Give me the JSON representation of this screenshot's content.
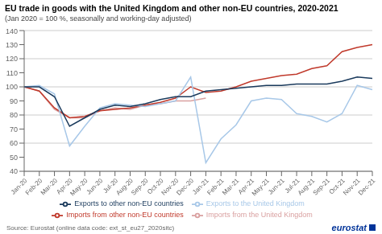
{
  "chart_data": {
    "type": "line",
    "title": "EU trade in goods with the United Kingdom and other non-EU countries, 2020-2021",
    "subtitle": "(Jan 2020 = 100 %, seasonally and working-day adjusted)",
    "annotations": [
      "Source: Eurostat (online data code: ext_st_eu27_2020sitc)",
      "eurostat"
    ],
    "categories": [
      "Jan-20",
      "Feb-20",
      "Mar-20",
      "Apr-20",
      "May-20",
      "Jun-20",
      "Jul-20",
      "Aug-20",
      "Sep-20",
      "Oct-20",
      "Nov-20",
      "Dec-20",
      "Jan-21",
      "Feb-21",
      "Mar-21",
      "Apr-21",
      "May-21",
      "Jun-21",
      "Jul-21",
      "Aug-21",
      "Sep-21",
      "Oct-21",
      "Nov-21",
      "Dec-21"
    ],
    "series": [
      {
        "name": "Imports from the United Kingdom",
        "color": "#d9a0a0",
        "values": [
          100,
          97,
          84,
          78,
          78,
          83,
          85,
          84,
          87,
          88,
          90,
          90,
          92,
          null,
          null,
          null,
          null,
          null,
          null,
          null,
          null,
          null,
          null,
          null
        ]
      },
      {
        "name": "Imports from other non-EU countries",
        "color": "#c0392b",
        "values": [
          100,
          97,
          85,
          78,
          79,
          83,
          84,
          85,
          87,
          89,
          92,
          100,
          96,
          97,
          100,
          104,
          106,
          108,
          109,
          113,
          115,
          125,
          128,
          130
        ]
      },
      {
        "name": "Exports to the United Kingdom",
        "color": "#a8c8e8",
        "values": [
          100,
          101,
          95,
          58,
          72,
          85,
          88,
          87,
          86,
          88,
          90,
          107,
          46,
          63,
          73,
          90,
          92,
          91,
          81,
          79,
          75,
          81,
          101,
          98
        ]
      },
      {
        "name": "Exports to other non-EU countries",
        "color": "#1a3a5c",
        "values": [
          100,
          100,
          93,
          72,
          78,
          84,
          87,
          86,
          88,
          91,
          93,
          93,
          97,
          98,
          99,
          100,
          101,
          101,
          102,
          102,
          102,
          104,
          107,
          106
        ]
      }
    ],
    "ylim": [
      40,
      140
    ],
    "yticks": [
      40,
      50,
      60,
      70,
      80,
      90,
      100,
      110,
      120,
      130,
      140
    ],
    "grid": true,
    "legend": "bottom"
  }
}
